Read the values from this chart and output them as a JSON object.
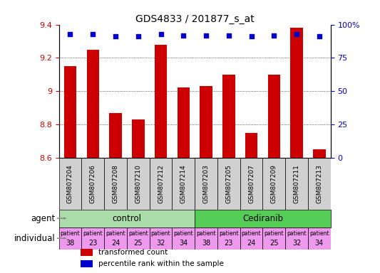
{
  "title": "GDS4833 / 201877_s_at",
  "samples": [
    "GSM807204",
    "GSM807206",
    "GSM807208",
    "GSM807210",
    "GSM807212",
    "GSM807214",
    "GSM807203",
    "GSM807205",
    "GSM807207",
    "GSM807209",
    "GSM807211",
    "GSM807213"
  ],
  "transformed_counts": [
    9.15,
    9.25,
    8.87,
    8.83,
    9.28,
    9.02,
    9.03,
    9.1,
    8.75,
    9.1,
    9.38,
    8.65
  ],
  "percentile_ranks": [
    93,
    93,
    91,
    91,
    93,
    92,
    92,
    92,
    91,
    92,
    93,
    91
  ],
  "ylim_left": [
    8.6,
    9.4
  ],
  "ylim_right": [
    0,
    100
  ],
  "yticks_left": [
    8.6,
    8.8,
    9.0,
    9.2,
    9.4
  ],
  "yticks_right": [
    0,
    25,
    50,
    75,
    100
  ],
  "ytick_labels_left": [
    "8.6",
    "8.8",
    "9",
    "9.2",
    "9.4"
  ],
  "ytick_labels_right": [
    "0",
    "25",
    "50",
    "75",
    "100%"
  ],
  "bar_color": "#cc0000",
  "dot_color": "#0000cc",
  "agent_control_color": "#aaddaa",
  "agent_cediranib_color": "#55cc55",
  "sample_bg_color": "#d0d0d0",
  "individual_color_alt": "#dd88dd",
  "individual_color_base": "#ee99ee",
  "agents": [
    "control",
    "control",
    "control",
    "control",
    "control",
    "control",
    "Cediranib",
    "Cediranib",
    "Cediranib",
    "Cediranib",
    "Cediranib",
    "Cediranib"
  ],
  "patients": [
    "38",
    "23",
    "24",
    "25",
    "32",
    "34",
    "38",
    "23",
    "24",
    "25",
    "32",
    "34"
  ],
  "n_control": 6,
  "n_cediranib": 6,
  "legend_items": [
    {
      "color": "#cc0000",
      "label": "transformed count"
    },
    {
      "color": "#0000cc",
      "label": "percentile rank within the sample"
    }
  ],
  "figsize": [
    5.33,
    3.84
  ],
  "dpi": 100
}
